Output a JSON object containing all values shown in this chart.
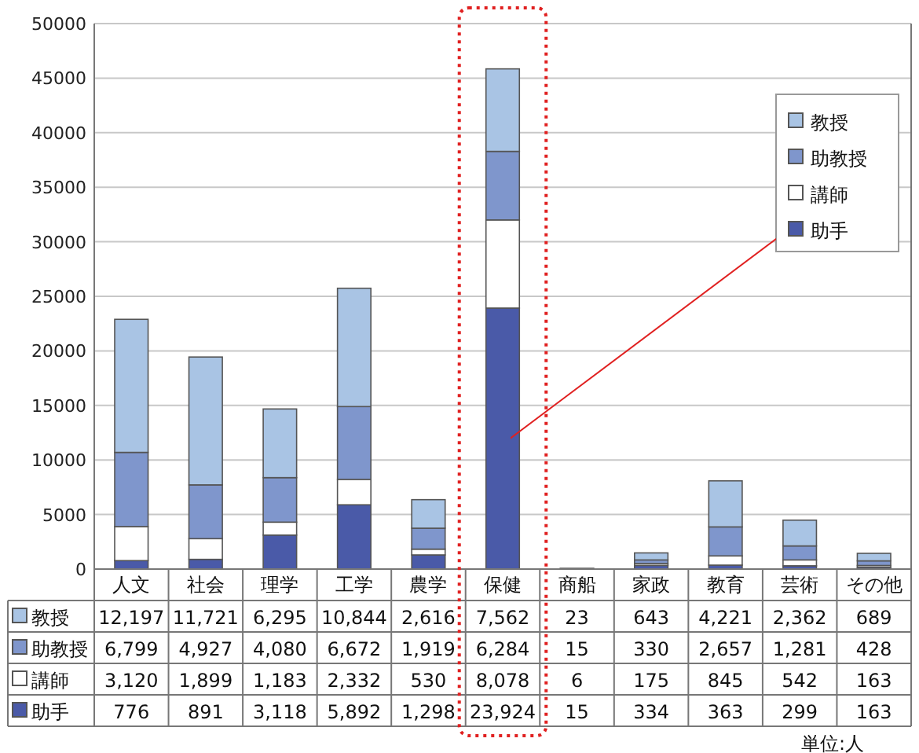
{
  "chart_data": {
    "type": "bar",
    "stacked": true,
    "categories": [
      "人文",
      "社会",
      "理学",
      "工学",
      "農学",
      "保健",
      "商船",
      "家政",
      "教育",
      "芸術",
      "その他"
    ],
    "series": [
      {
        "name": "助手",
        "color": "#4a5aa8",
        "values": [
          776,
          891,
          3118,
          5892,
          1298,
          23924,
          15,
          334,
          363,
          299,
          163
        ],
        "value_labels": [
          "776",
          "891",
          "3,118",
          "5,892",
          "1,298",
          "23,924",
          "15",
          "334",
          "363",
          "299",
          "163"
        ]
      },
      {
        "name": "講師",
        "color": "#ffffff",
        "values": [
          3120,
          1899,
          1183,
          2332,
          530,
          8078,
          6,
          175,
          845,
          542,
          163
        ],
        "value_labels": [
          "3,120",
          "1,899",
          "1,183",
          "2,332",
          "530",
          "8,078",
          "6",
          "175",
          "845",
          "542",
          "163"
        ]
      },
      {
        "name": "助教授",
        "color": "#7f96cc",
        "values": [
          6799,
          4927,
          4080,
          6672,
          1919,
          6284,
          15,
          330,
          2657,
          1281,
          428
        ],
        "value_labels": [
          "6,799",
          "4,927",
          "4,080",
          "6,672",
          "1,919",
          "6,284",
          "15",
          "330",
          "2,657",
          "1,281",
          "428"
        ]
      },
      {
        "name": "教授",
        "color": "#a9c4e4",
        "values": [
          12197,
          11721,
          6295,
          10844,
          2616,
          7562,
          23,
          643,
          4221,
          2362,
          689
        ],
        "value_labels": [
          "12,197",
          "11,721",
          "6,295",
          "10,844",
          "2,616",
          "7,562",
          "23",
          "643",
          "4,221",
          "2,362",
          "689"
        ]
      }
    ],
    "ylim": [
      0,
      50000
    ],
    "yticks": [
      0,
      5000,
      10000,
      15000,
      20000,
      25000,
      30000,
      35000,
      40000,
      45000,
      50000
    ],
    "grid": "y",
    "legend": "top right",
    "annotations": [
      "単位:人"
    ]
  }
}
